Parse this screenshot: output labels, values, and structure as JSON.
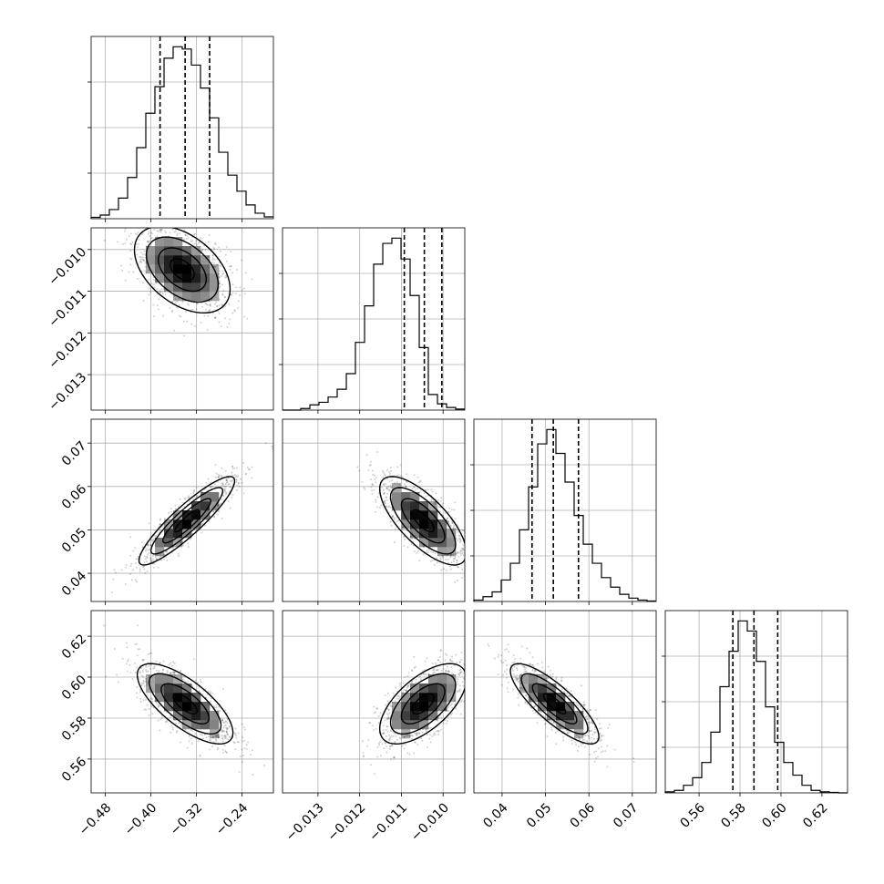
{
  "chart_data": {
    "type": "corner",
    "title": "",
    "grid": true,
    "colors": {
      "line": "#000000",
      "grid": "#b0b0b0",
      "points": "#000000",
      "background": "#ffffff"
    },
    "parameters": [
      {
        "xlim": [
          -0.505,
          -0.185
        ],
        "ticks": [
          -0.48,
          -0.4,
          -0.32,
          -0.24
        ],
        "tick_labels": [
          "−0.48",
          "−0.40",
          "−0.32",
          "−0.24"
        ],
        "quantiles": [
          -0.384,
          -0.34,
          -0.297
        ],
        "histogram": {
          "edges": [
            -0.505,
            -0.489,
            -0.473,
            -0.457,
            -0.441,
            -0.425,
            -0.409,
            -0.393,
            -0.377,
            -0.361,
            -0.345,
            -0.329,
            -0.313,
            -0.297,
            -0.281,
            -0.265,
            -0.249,
            -0.233,
            -0.217,
            -0.201,
            -0.185
          ],
          "counts": [
            0.3,
            0.8,
            2.0,
            4.5,
            9.0,
            15.5,
            23.0,
            28.8,
            35.0,
            37.5,
            37.0,
            33.5,
            28.5,
            22.0,
            14.5,
            9.5,
            6.0,
            3.0,
            1.2,
            0.4
          ]
        }
      },
      {
        "xlim": [
          -0.01385,
          -0.00948
        ],
        "ylim": [
          -0.01385,
          -0.00948
        ],
        "ticks": [
          -0.013,
          -0.012,
          -0.011,
          -0.01
        ],
        "tick_labels": [
          "−0.013",
          "−0.012",
          "−0.011",
          "−0.010"
        ],
        "quantiles": [
          -0.01093,
          -0.01045,
          -0.01003
        ],
        "histogram": {
          "edges": [
            -0.01385,
            -0.013631,
            -0.013413,
            -0.013194,
            -0.012976,
            -0.012757,
            -0.012539,
            -0.01232,
            -0.012102,
            -0.011883,
            -0.011665,
            -0.011446,
            -0.011228,
            -0.011009,
            -0.010791,
            -0.010572,
            -0.010354,
            -0.010135,
            -0.009917,
            -0.009698,
            -0.00948
          ],
          "counts": [
            0.0,
            0.0,
            0.3,
            1.0,
            1.5,
            2.5,
            4.0,
            7.0,
            13.0,
            20.0,
            28.0,
            32.0,
            33.0,
            29.0,
            22.0,
            12.0,
            3.0,
            1.2,
            0.5,
            0.2
          ]
        }
      },
      {
        "xlim": [
          0.0335,
          0.0755
        ],
        "ylim": [
          0.0335,
          0.0755
        ],
        "ticks": [
          0.04,
          0.05,
          0.06,
          0.07
        ],
        "tick_labels": [
          "0.04",
          "0.05",
          "0.06",
          "0.07"
        ],
        "quantiles": [
          0.0469,
          0.0518,
          0.0576
        ],
        "histogram": {
          "edges": [
            0.0335,
            0.0356,
            0.0377,
            0.0398,
            0.0419,
            0.044,
            0.0461,
            0.0482,
            0.0503,
            0.0524,
            0.0545,
            0.0566,
            0.0587,
            0.0608,
            0.0629,
            0.065,
            0.0671,
            0.0692,
            0.0713,
            0.0734,
            0.0755
          ],
          "counts": [
            0.3,
            1.0,
            2.0,
            4.5,
            8.0,
            15.0,
            24.0,
            33.0,
            36.0,
            31.0,
            25.0,
            18.0,
            12.0,
            8.0,
            5.0,
            3.0,
            1.5,
            0.7,
            0.3,
            0.1
          ]
        }
      },
      {
        "xlim": [
          0.5435,
          0.6325
        ],
        "ylim": [
          0.5435,
          0.6325
        ],
        "ticks": [
          0.56,
          0.58,
          0.6,
          0.62
        ],
        "tick_labels": [
          "0.56",
          "0.58",
          "0.60",
          "0.62"
        ],
        "quantiles": [
          0.5765,
          0.5868,
          0.5984
        ],
        "histogram": {
          "edges": [
            0.5435,
            0.54795,
            0.5524,
            0.55685,
            0.5613,
            0.56575,
            0.5702,
            0.57465,
            0.5791,
            0.58355,
            0.588,
            0.59245,
            0.5969,
            0.60135,
            0.6058,
            0.61025,
            0.6147,
            0.61915,
            0.6236,
            0.62805,
            0.6325
          ],
          "counts": [
            0.2,
            0.5,
            1.5,
            3.0,
            6.0,
            12.0,
            21.0,
            28.0,
            34.0,
            32.0,
            26.0,
            17.0,
            10.0,
            6.0,
            3.5,
            1.5,
            0.5,
            0.2,
            0.1,
            0.0
          ]
        }
      }
    ],
    "pairs": [
      {
        "x": 0,
        "y": 1,
        "mean": [
          -0.345,
          -0.01048
        ],
        "sd": [
          0.042,
          0.00052
        ],
        "rho": -0.45,
        "contours": [
          [
            -0.32,
            -0.0104
          ],
          [
            -0.37,
            -0.0105
          ],
          [
            -0.305,
            -0.0108
          ]
        ]
      },
      {
        "x": 0,
        "y": 2,
        "mean": [
          -0.337,
          0.0521
        ],
        "sd": [
          0.042,
          0.0051
        ],
        "rho": 0.9
      },
      {
        "x": 1,
        "y": 2,
        "mean": [
          -0.01048,
          0.0521
        ],
        "sd": [
          0.00052,
          0.0051
        ],
        "rho": -0.72
      },
      {
        "x": 0,
        "y": 3,
        "mean": [
          -0.34,
          0.587
        ],
        "sd": [
          0.042,
          0.0098
        ],
        "rho": -0.72
      },
      {
        "x": 1,
        "y": 3,
        "mean": [
          -0.01048,
          0.587
        ],
        "sd": [
          0.00052,
          0.0098
        ],
        "rho": 0.62
      },
      {
        "x": 2,
        "y": 3,
        "mean": [
          0.0521,
          0.587
        ],
        "sd": [
          0.0051,
          0.0098
        ],
        "rho": -0.82
      }
    ]
  }
}
